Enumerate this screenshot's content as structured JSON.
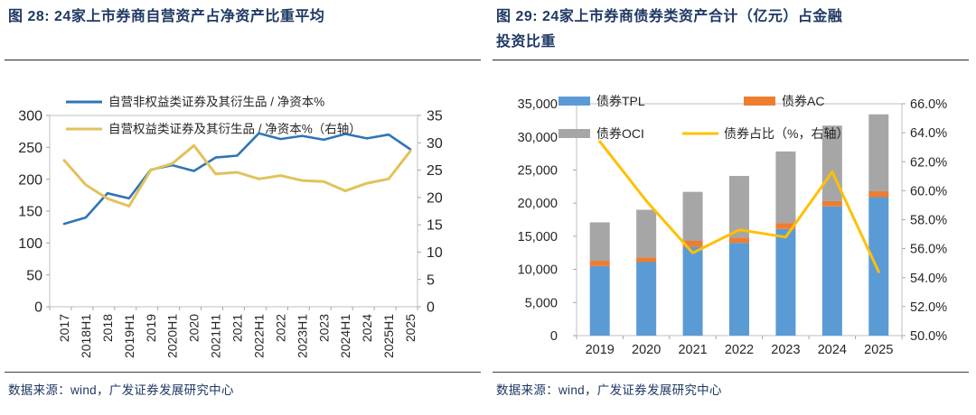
{
  "panels": [
    {
      "title_lines": [
        "图 28: 24家上市券商自营资产占净资产比重平均"
      ],
      "source": "数据来源：wind，广发证券发展研究中心"
    },
    {
      "title_lines": [
        "图 29: 24家上市券商债券类资产合计（亿元）占金融",
        "投资比重"
      ],
      "source": "数据来源：wind，广发证券发展研究中心"
    }
  ],
  "chart_data": [
    {
      "type": "line",
      "title": "24家上市券商自营资产占净资产比重平均",
      "categories": [
        "2017",
        "2018H1",
        "2018",
        "2019H1",
        "2019",
        "2020H1",
        "2020",
        "2021H1",
        "2021",
        "2022H1",
        "2022",
        "2023H1",
        "2023",
        "2024H1",
        "2024",
        "2025H1",
        "2025"
      ],
      "series": [
        {
          "name": "自营非权益类证券及其衍生品 / 净资本%",
          "axis": "left",
          "color": "#2E75B6",
          "values": [
            130,
            140,
            178,
            170,
            215,
            222,
            213,
            234,
            237,
            272,
            263,
            268,
            262,
            271,
            264,
            270,
            247
          ]
        },
        {
          "name": "自营权益类证券及其衍生品 / 净资本%（右轴）",
          "axis": "right",
          "color": "#E2C25C",
          "values": [
            26.8,
            22.3,
            19.8,
            18.4,
            25.0,
            26.2,
            29.5,
            24.3,
            24.6,
            23.4,
            24.0,
            23.1,
            22.9,
            21.2,
            22.6,
            23.4,
            28.5
          ]
        }
      ],
      "left_axis": {
        "min": 0,
        "max": 300,
        "step": 50
      },
      "right_axis": {
        "min": 0,
        "max": 35,
        "step": 5
      },
      "legend_position": "top-left",
      "grid": false
    },
    {
      "type": "bar",
      "title": "24家上市券商债券类资产合计（亿元）占金融投资比重",
      "categories": [
        "2019",
        "2020",
        "2021",
        "2022",
        "2023",
        "2024",
        "2025"
      ],
      "bar_series": [
        {
          "name": "债券TPL",
          "color": "#5B9BD5",
          "values": [
            10500,
            11100,
            13400,
            14000,
            16100,
            19500,
            20900
          ]
        },
        {
          "name": "债券AC",
          "color": "#ED7D31",
          "values": [
            800,
            700,
            900,
            800,
            900,
            800,
            900
          ]
        },
        {
          "name": "债券OCI",
          "color": "#A6A6A6",
          "values": [
            5800,
            7200,
            7400,
            9300,
            10800,
            11400,
            11600
          ]
        }
      ],
      "line_series": {
        "name": "债券占比（%，右轴）",
        "axis": "right",
        "color": "#FFC000",
        "values": [
          63.4,
          59.3,
          55.7,
          57.3,
          56.8,
          61.3,
          54.4
        ]
      },
      "left_axis": {
        "min": 0,
        "max": 35000,
        "step": 5000
      },
      "right_axis": {
        "min": 50,
        "max": 66,
        "step": 2
      },
      "stacked": true,
      "legend_position": "top",
      "grid": false
    }
  ]
}
